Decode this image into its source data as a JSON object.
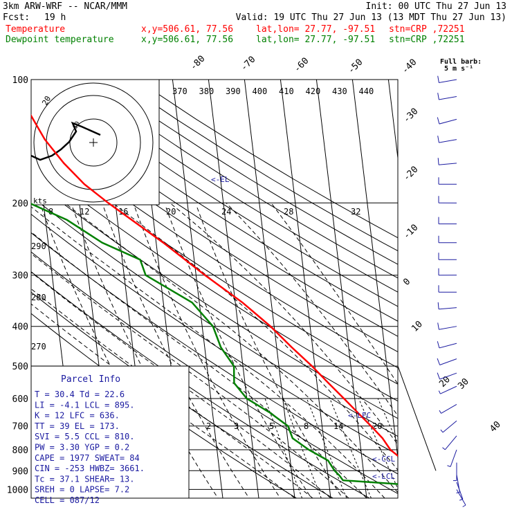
{
  "header": {
    "model": "3km ARW-WRF -- NCAR/MMM",
    "init": "Init: 00 UTC Thu 27 Jun 13",
    "fcst_label": "Fcst:",
    "fcst_value": "19 h",
    "valid": "Valid: 19 UTC Thu 27 Jun 13 (13 MDT Thu 27 Jun 13)",
    "temp_label": "Temperature",
    "dew_label": "Dewpoint temperature",
    "xy": "x,y=506.61, 77.56",
    "latlon": "lat,lon= 27.77, -97.51",
    "stn": "stn=CRP ,72251",
    "fullbarb_line1": "Full barb:",
    "fullbarb_line2": "5 m s⁻¹"
  },
  "colors": {
    "temperature": "#ff0000",
    "dewpoint": "#008000",
    "parcel_text": "#1a1aa0",
    "barbs": "#1a1aa0",
    "grid": "#000000"
  },
  "parcel_info": {
    "title": "Parcel Info",
    "rows": [
      "T   =  30.4  Td =  22.6",
      "LI  =  -4.1  LCL =  895.",
      "K   =    12  LFC =  636.",
      "TT  =    39  EL  =  173.",
      "SVI =   5.5  CCL =  810.",
      "PW  =  3.30  YGP =   0.2",
      "CAPE =  1977  SWEAT=   84",
      "CIN  =  -253  HWBZ= 3661.",
      "Tc  =  37.1  SHEAR=  13.",
      "SREH =     0  LAPSE=  7.2",
      "CELL = 087/12"
    ]
  },
  "hodograph": {
    "units_label": "kts",
    "ring_label": "20",
    "inner_label": "10"
  },
  "labels": {
    "el": "<-EL",
    "lfc": "<-LFC",
    "ccl": "<-CCL",
    "lcl": "<-LCL"
  },
  "chart_data": {
    "type": "line",
    "title": "",
    "y_axis": {
      "scale": "log",
      "label": "Pressure (hPa)",
      "ticks": [
        100,
        200,
        300,
        400,
        500,
        600,
        700,
        800,
        900,
        1000
      ]
    },
    "isotherm_labels": [
      "-80",
      "-70",
      "-60",
      "-50",
      "-40",
      "-30",
      "-20",
      "-10",
      "0",
      "10",
      "20",
      "30",
      "40"
    ],
    "theta_labels": [
      "370",
      "380",
      "390",
      "400",
      "410",
      "420",
      "430",
      "440"
    ],
    "theta_left_labels": [
      "290",
      "280",
      "270"
    ],
    "mixing_ratio_labels": [
      "2",
      "3",
      "5",
      "8",
      "14",
      "20"
    ],
    "hodo_speed_labels": [
      "8",
      "12",
      "16",
      "20",
      "24",
      "28",
      "32"
    ],
    "series": [
      {
        "name": "Temperature",
        "points": [
          [
            1000,
            30.4
          ],
          [
            975,
            25.5
          ],
          [
            950,
            26.5
          ],
          [
            925,
            25.0
          ],
          [
            900,
            24.0
          ],
          [
            850,
            21.5
          ],
          [
            800,
            18.2
          ],
          [
            750,
            16.4
          ],
          [
            700,
            13.6
          ],
          [
            650,
            10.4
          ],
          [
            600,
            7.0
          ],
          [
            550,
            3.2
          ],
          [
            500,
            -0.8
          ],
          [
            450,
            -5.8
          ],
          [
            400,
            -11.0
          ],
          [
            350,
            -18.0
          ],
          [
            300,
            -27.5
          ],
          [
            250,
            -38.0
          ],
          [
            200,
            -52.0
          ],
          [
            180,
            -58.0
          ],
          [
            160,
            -63.0
          ],
          [
            140,
            -67.5
          ],
          [
            120,
            -71.0
          ],
          [
            100,
            -73.0
          ]
        ]
      },
      {
        "name": "Dewpoint temperature",
        "points": [
          [
            1000,
            22.6
          ],
          [
            975,
            22.6
          ],
          [
            950,
            4.0
          ],
          [
            925,
            3.2
          ],
          [
            900,
            2.0
          ],
          [
            850,
            0.5
          ],
          [
            800,
            -4.5
          ],
          [
            750,
            -8.6
          ],
          [
            700,
            -9.5
          ],
          [
            650,
            -14.0
          ],
          [
            600,
            -20.0
          ],
          [
            550,
            -23.0
          ],
          [
            500,
            -22.5
          ],
          [
            450,
            -25.5
          ],
          [
            400,
            -27.0
          ],
          [
            350,
            -32.0
          ],
          [
            300,
            -44.0
          ],
          [
            275,
            -45.0
          ],
          [
            250,
            -55.0
          ],
          [
            220,
            -64.0
          ],
          [
            200,
            -74.0
          ],
          [
            180,
            -81.0
          ],
          [
            160,
            -84.0
          ],
          [
            140,
            -86.0
          ],
          [
            120,
            -87.0
          ],
          [
            100,
            -88.0
          ]
        ]
      }
    ],
    "wind_barbs": [
      {
        "p": 100,
        "dir": 260,
        "spd": 10
      },
      {
        "p": 110,
        "dir": 260,
        "spd": 10
      },
      {
        "p": 125,
        "dir": 255,
        "spd": 10
      },
      {
        "p": 140,
        "dir": 260,
        "spd": 10
      },
      {
        "p": 160,
        "dir": 265,
        "spd": 10
      },
      {
        "p": 180,
        "dir": 270,
        "spd": 10
      },
      {
        "p": 200,
        "dir": 270,
        "spd": 10
      },
      {
        "p": 225,
        "dir": 270,
        "spd": 10
      },
      {
        "p": 250,
        "dir": 270,
        "spd": 10
      },
      {
        "p": 275,
        "dir": 270,
        "spd": 10
      },
      {
        "p": 300,
        "dir": 270,
        "spd": 10
      },
      {
        "p": 330,
        "dir": 270,
        "spd": 10
      },
      {
        "p": 360,
        "dir": 265,
        "spd": 10
      },
      {
        "p": 400,
        "dir": 260,
        "spd": 10
      },
      {
        "p": 440,
        "dir": 255,
        "spd": 10
      },
      {
        "p": 480,
        "dir": 250,
        "spd": 10
      },
      {
        "p": 520,
        "dir": 250,
        "spd": 10
      },
      {
        "p": 560,
        "dir": 245,
        "spd": 5
      },
      {
        "p": 620,
        "dir": 240,
        "spd": 5
      },
      {
        "p": 680,
        "dir": 230,
        "spd": 5
      },
      {
        "p": 740,
        "dir": 220,
        "spd": 5
      },
      {
        "p": 800,
        "dir": 200,
        "spd": 5
      },
      {
        "p": 860,
        "dir": 180,
        "spd": 5
      },
      {
        "p": 920,
        "dir": 170,
        "spd": 5
      },
      {
        "p": 960,
        "dir": 160,
        "spd": 5
      },
      {
        "p": 1000,
        "dir": 150,
        "spd": 5
      }
    ]
  }
}
